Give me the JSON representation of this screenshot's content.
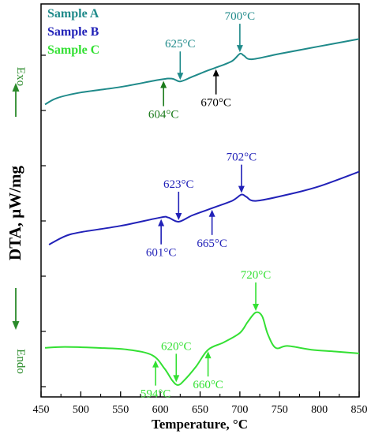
{
  "chart_data": {
    "type": "line",
    "xlabel": "Temperature, °C",
    "ylabel": "DTA, μW/mg",
    "xlim": [
      450,
      850
    ],
    "xticks": [
      "450",
      "500",
      "550",
      "600",
      "650",
      "700",
      "750",
      "800",
      "850"
    ],
    "exo_label": "Exo",
    "endo_label": "Endo",
    "grid": false,
    "legend": "top-left",
    "series": [
      {
        "name": "Sample A",
        "color": "#1f8a8a",
        "points": [
          [
            455,
            0.15
          ],
          [
            470,
            0.22
          ],
          [
            500,
            0.28
          ],
          [
            550,
            0.34
          ],
          [
            600,
            0.42
          ],
          [
            615,
            0.43
          ],
          [
            625,
            0.4
          ],
          [
            640,
            0.45
          ],
          [
            660,
            0.52
          ],
          [
            670,
            0.55
          ],
          [
            690,
            0.62
          ],
          [
            700,
            0.7
          ],
          [
            705,
            0.68
          ],
          [
            715,
            0.64
          ],
          [
            750,
            0.7
          ],
          [
            800,
            0.78
          ],
          [
            850,
            0.86
          ]
        ],
        "annotations": [
          {
            "label": "604°C",
            "x": 604,
            "dir": "up",
            "color": "#1a7a1a"
          },
          {
            "label": "625°C",
            "x": 625,
            "dir": "down",
            "color": "#1f8a8a"
          },
          {
            "label": "670°C",
            "x": 670,
            "dir": "up",
            "color": "#000000"
          },
          {
            "label": "700°C",
            "x": 700,
            "dir": "down",
            "color": "#1f8a8a"
          }
        ]
      },
      {
        "name": "Sample B",
        "color": "#2121b8",
        "points": [
          [
            460,
            0.0
          ],
          [
            480,
            0.08
          ],
          [
            500,
            0.12
          ],
          [
            550,
            0.18
          ],
          [
            600,
            0.26
          ],
          [
            610,
            0.26
          ],
          [
            623,
            0.22
          ],
          [
            640,
            0.28
          ],
          [
            665,
            0.35
          ],
          [
            690,
            0.42
          ],
          [
            702,
            0.48
          ],
          [
            708,
            0.46
          ],
          [
            720,
            0.42
          ],
          [
            760,
            0.48
          ],
          [
            800,
            0.56
          ],
          [
            850,
            0.7
          ]
        ],
        "annotations": [
          {
            "label": "601°C",
            "x": 601,
            "dir": "up",
            "color": "#2121b8"
          },
          {
            "label": "623°C",
            "x": 623,
            "dir": "down",
            "color": "#2121b8"
          },
          {
            "label": "665°C",
            "x": 665,
            "dir": "up",
            "color": "#2121b8"
          },
          {
            "label": "702°C",
            "x": 702,
            "dir": "down",
            "color": "#2121b8"
          }
        ]
      },
      {
        "name": "Sample C",
        "color": "#33e033",
        "points": [
          [
            455,
            0.4
          ],
          [
            480,
            0.41
          ],
          [
            520,
            0.4
          ],
          [
            560,
            0.38
          ],
          [
            590,
            0.32
          ],
          [
            605,
            0.18
          ],
          [
            615,
            0.05
          ],
          [
            622,
            0.0
          ],
          [
            630,
            0.05
          ],
          [
            645,
            0.2
          ],
          [
            660,
            0.38
          ],
          [
            680,
            0.46
          ],
          [
            700,
            0.56
          ],
          [
            710,
            0.68
          ],
          [
            720,
            0.78
          ],
          [
            728,
            0.74
          ],
          [
            735,
            0.55
          ],
          [
            745,
            0.4
          ],
          [
            760,
            0.42
          ],
          [
            790,
            0.38
          ],
          [
            820,
            0.36
          ],
          [
            850,
            0.34
          ]
        ],
        "annotations": [
          {
            "label": "594°C",
            "x": 594,
            "dir": "up",
            "color": "#33e033"
          },
          {
            "label": "620°C",
            "x": 620,
            "dir": "down",
            "color": "#33e033"
          },
          {
            "label": "660°C",
            "x": 660,
            "dir": "up",
            "color": "#33e033"
          },
          {
            "label": "720°C",
            "x": 720,
            "dir": "down",
            "color": "#33e033"
          }
        ]
      }
    ]
  }
}
